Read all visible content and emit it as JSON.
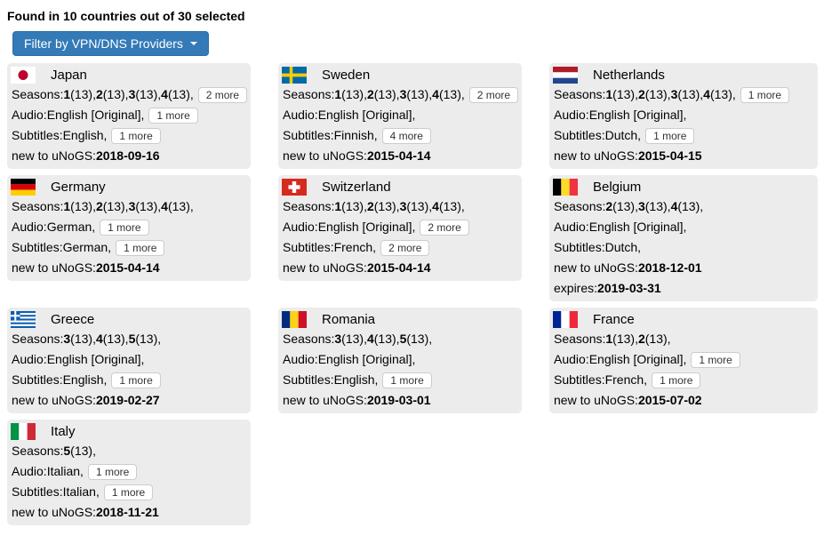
{
  "page": {
    "title": "Found in 10 countries out of 30 selected"
  },
  "filter_button": {
    "label": "Filter by VPN/DNS Providers",
    "background": "#337ab7",
    "border_color": "#2e6da4",
    "text_color": "#ffffff"
  },
  "labels": {
    "seasons": "Seasons:",
    "audio": "Audio:",
    "subtitles": "Subtitles:",
    "new_to": "new to uNoGS:",
    "expires": "expires:"
  },
  "card_background": "#ececec",
  "countries": [
    {
      "name": "Japan",
      "flag": "japan",
      "seasons": [
        {
          "num": "1",
          "episodes": "13"
        },
        {
          "num": "2",
          "episodes": "13"
        },
        {
          "num": "3",
          "episodes": "13"
        },
        {
          "num": "4",
          "episodes": "13"
        }
      ],
      "seasons_more": "2 more",
      "audio": "English [Original],",
      "audio_more": "1 more",
      "subtitles": "English,",
      "subtitles_more": "1 more",
      "new_to_date": "2018-09-16",
      "expires_date": null
    },
    {
      "name": "Sweden",
      "flag": "sweden",
      "seasons": [
        {
          "num": "1",
          "episodes": "13"
        },
        {
          "num": "2",
          "episodes": "13"
        },
        {
          "num": "3",
          "episodes": "13"
        },
        {
          "num": "4",
          "episodes": "13"
        }
      ],
      "seasons_more": "2 more",
      "audio": "English [Original],",
      "audio_more": null,
      "subtitles": "Finnish,",
      "subtitles_more": "4 more",
      "new_to_date": "2015-04-14",
      "expires_date": null
    },
    {
      "name": "Netherlands",
      "flag": "netherlands",
      "seasons": [
        {
          "num": "1",
          "episodes": "13"
        },
        {
          "num": "2",
          "episodes": "13"
        },
        {
          "num": "3",
          "episodes": "13"
        },
        {
          "num": "4",
          "episodes": "13"
        }
      ],
      "seasons_more": "1 more",
      "audio": "English [Original],",
      "audio_more": null,
      "subtitles": "Dutch,",
      "subtitles_more": "1 more",
      "new_to_date": "2015-04-15",
      "expires_date": null
    },
    {
      "name": "Germany",
      "flag": "germany",
      "seasons": [
        {
          "num": "1",
          "episodes": "13"
        },
        {
          "num": "2",
          "episodes": "13"
        },
        {
          "num": "3",
          "episodes": "13"
        },
        {
          "num": "4",
          "episodes": "13"
        }
      ],
      "seasons_more": null,
      "audio": "German,",
      "audio_more": "1 more",
      "subtitles": "German,",
      "subtitles_more": "1 more",
      "new_to_date": "2015-04-14",
      "expires_date": null
    },
    {
      "name": "Switzerland",
      "flag": "switzerland",
      "seasons": [
        {
          "num": "1",
          "episodes": "13"
        },
        {
          "num": "2",
          "episodes": "13"
        },
        {
          "num": "3",
          "episodes": "13"
        },
        {
          "num": "4",
          "episodes": "13"
        }
      ],
      "seasons_more": null,
      "audio": "English [Original],",
      "audio_more": "2 more",
      "subtitles": "French,",
      "subtitles_more": "2 more",
      "new_to_date": "2015-04-14",
      "expires_date": null
    },
    {
      "name": "Belgium",
      "flag": "belgium",
      "seasons": [
        {
          "num": "2",
          "episodes": "13"
        },
        {
          "num": "3",
          "episodes": "13"
        },
        {
          "num": "4",
          "episodes": "13"
        }
      ],
      "seasons_more": null,
      "audio": "English [Original],",
      "audio_more": null,
      "subtitles": "Dutch,",
      "subtitles_more": null,
      "new_to_date": "2018-12-01",
      "expires_date": "2019-03-31"
    },
    {
      "name": "Greece",
      "flag": "greece",
      "seasons": [
        {
          "num": "3",
          "episodes": "13"
        },
        {
          "num": "4",
          "episodes": "13"
        },
        {
          "num": "5",
          "episodes": "13"
        }
      ],
      "seasons_more": null,
      "audio": "English [Original],",
      "audio_more": null,
      "subtitles": "English,",
      "subtitles_more": "1 more",
      "new_to_date": "2019-02-27",
      "expires_date": null
    },
    {
      "name": "Romania",
      "flag": "romania",
      "seasons": [
        {
          "num": "3",
          "episodes": "13"
        },
        {
          "num": "4",
          "episodes": "13"
        },
        {
          "num": "5",
          "episodes": "13"
        }
      ],
      "seasons_more": null,
      "audio": "English [Original],",
      "audio_more": null,
      "subtitles": "English,",
      "subtitles_more": "1 more",
      "new_to_date": "2019-03-01",
      "expires_date": null
    },
    {
      "name": "France",
      "flag": "france",
      "seasons": [
        {
          "num": "1",
          "episodes": "13"
        },
        {
          "num": "2",
          "episodes": "13"
        }
      ],
      "seasons_more": null,
      "audio": "English [Original],",
      "audio_more": "1 more",
      "subtitles": "French,",
      "subtitles_more": "1 more",
      "new_to_date": "2015-07-02",
      "expires_date": null
    },
    {
      "name": "Italy",
      "flag": "italy",
      "seasons": [
        {
          "num": "5",
          "episodes": "13"
        }
      ],
      "seasons_more": null,
      "audio": "Italian,",
      "audio_more": "1 more",
      "subtitles": "Italian,",
      "subtitles_more": "1 more",
      "new_to_date": "2018-11-21",
      "expires_date": null
    }
  ],
  "flags": {
    "japan": {
      "type": "disc",
      "colors": [
        "#ffffff",
        "#bc002d"
      ]
    },
    "sweden": {
      "type": "nordic_cross",
      "colors": [
        "#006aa7",
        "#fecc00"
      ]
    },
    "netherlands": {
      "type": "h_stripes",
      "colors": [
        "#ae1c28",
        "#ffffff",
        "#21468b"
      ]
    },
    "germany": {
      "type": "h_stripes",
      "colors": [
        "#000000",
        "#dd0000",
        "#ffce00"
      ]
    },
    "switzerland": {
      "type": "cross",
      "colors": [
        "#d52b1e",
        "#ffffff"
      ]
    },
    "belgium": {
      "type": "v_stripes",
      "colors": [
        "#000000",
        "#fdda24",
        "#ef3340"
      ]
    },
    "greece": {
      "type": "greek",
      "colors": [
        "#0d5eaf",
        "#ffffff"
      ]
    },
    "romania": {
      "type": "v_stripes",
      "colors": [
        "#002b7f",
        "#fcd116",
        "#ce1126"
      ]
    },
    "france": {
      "type": "v_stripes",
      "colors": [
        "#002395",
        "#ffffff",
        "#ed2939"
      ]
    },
    "italy": {
      "type": "v_stripes",
      "colors": [
        "#009246",
        "#ffffff",
        "#ce2b37"
      ]
    }
  }
}
